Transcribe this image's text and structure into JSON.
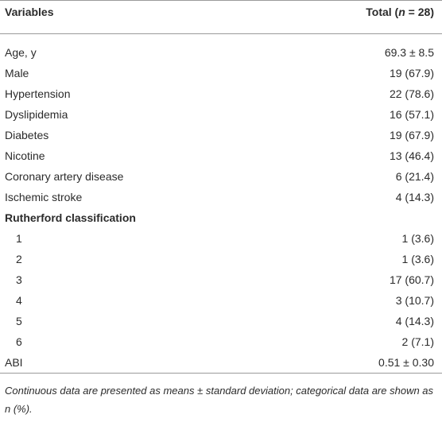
{
  "table": {
    "header": {
      "variable": "Variables",
      "total": [
        "Total (",
        "n",
        " = 28)"
      ]
    },
    "rows": [
      {
        "label": "Age, y",
        "value": "69.3 ± 8.5"
      },
      {
        "label": "Male",
        "value": "19 (67.9)"
      },
      {
        "label": "Hypertension",
        "value": "22 (78.6)"
      },
      {
        "label": "Dyslipidemia",
        "value": "16 (57.1)"
      },
      {
        "label": "Diabetes",
        "value": "19 (67.9)"
      },
      {
        "label": "Nicotine",
        "value": "13 (46.4)"
      },
      {
        "label": "Coronary artery disease",
        "value": "6 (21.4)"
      },
      {
        "label": "Ischemic stroke",
        "value": "4 (14.3)"
      },
      {
        "label": "Rutherford classification",
        "subrows": [
          {
            "label": "1",
            "value": "1 (3.6)"
          },
          {
            "label": "2",
            "value": "1 (3.6)"
          },
          {
            "label": "3",
            "value": "17 (60.7)"
          },
          {
            "label": "4",
            "value": "3 (10.7)"
          },
          {
            "label": "5",
            "value": "4 (14.3)"
          },
          {
            "label": "6",
            "value": "2 (7.1)"
          }
        ]
      },
      {
        "label": "ABI",
        "value": "0.51 ± 0.30"
      }
    ],
    "footnote": "Continuous data are presented as means ± standard deviation; categorical data are shown as n (%)."
  }
}
